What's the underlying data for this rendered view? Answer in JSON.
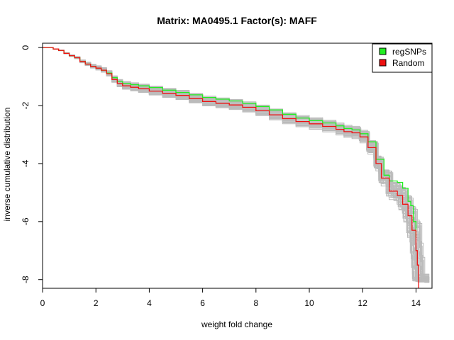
{
  "chart_data": {
    "type": "line",
    "title": "Matrix: MA0495.1 Factor(s): MAFF",
    "xlabel": "weight fold change",
    "ylabel": "inverse cumulative distribution",
    "xlim": [
      0,
      14.6
    ],
    "ylim": [
      -8.3,
      0.15
    ],
    "x_ticks": [
      0,
      2,
      4,
      6,
      8,
      10,
      12,
      14
    ],
    "y_ticks": [
      0,
      -2,
      -4,
      -6,
      -8
    ],
    "legend": {
      "position": "top-right",
      "box": true
    },
    "grid": false,
    "colors": {
      "regSNPs": "#22ee22",
      "Random": "#ee1111",
      "background_random": "#bbbbbb"
    },
    "series": [
      {
        "name": "regSNPs",
        "color": "#22ee22",
        "points": [
          [
            0,
            0
          ],
          [
            0.2,
            0
          ],
          [
            0.4,
            -0.05
          ],
          [
            0.6,
            -0.1
          ],
          [
            0.8,
            -0.2
          ],
          [
            1.0,
            -0.28
          ],
          [
            1.2,
            -0.35
          ],
          [
            1.4,
            -0.48
          ],
          [
            1.6,
            -0.57
          ],
          [
            1.8,
            -0.65
          ],
          [
            2.0,
            -0.71
          ],
          [
            2.2,
            -0.78
          ],
          [
            2.4,
            -0.88
          ],
          [
            2.6,
            -1.04
          ],
          [
            2.8,
            -1.17
          ],
          [
            3.0,
            -1.24
          ],
          [
            3.3,
            -1.28
          ],
          [
            3.6,
            -1.32
          ],
          [
            4.0,
            -1.38
          ],
          [
            4.5,
            -1.47
          ],
          [
            5.0,
            -1.55
          ],
          [
            5.5,
            -1.63
          ],
          [
            6.0,
            -1.72
          ],
          [
            6.5,
            -1.78
          ],
          [
            7.0,
            -1.84
          ],
          [
            7.5,
            -1.92
          ],
          [
            8.0,
            -2.03
          ],
          [
            8.5,
            -2.15
          ],
          [
            9.0,
            -2.3
          ],
          [
            9.5,
            -2.43
          ],
          [
            10.0,
            -2.52
          ],
          [
            10.5,
            -2.6
          ],
          [
            11.0,
            -2.7
          ],
          [
            11.3,
            -2.79
          ],
          [
            11.6,
            -2.84
          ],
          [
            11.9,
            -2.97
          ],
          [
            12.2,
            -3.25
          ],
          [
            12.5,
            -3.85
          ],
          [
            12.8,
            -4.4
          ],
          [
            13.0,
            -4.6
          ],
          [
            13.3,
            -4.65
          ],
          [
            13.5,
            -4.85
          ],
          [
            13.7,
            -5.3
          ],
          [
            13.8,
            -5.45
          ],
          [
            13.9,
            -6.0
          ],
          [
            14.0,
            -6.55
          ]
        ]
      },
      {
        "name": "Random",
        "color": "#ee1111",
        "points": [
          [
            0,
            0
          ],
          [
            0.2,
            0
          ],
          [
            0.4,
            -0.05
          ],
          [
            0.6,
            -0.1
          ],
          [
            0.8,
            -0.2
          ],
          [
            1.0,
            -0.28
          ],
          [
            1.2,
            -0.35
          ],
          [
            1.4,
            -0.48
          ],
          [
            1.6,
            -0.57
          ],
          [
            1.8,
            -0.65
          ],
          [
            2.0,
            -0.71
          ],
          [
            2.2,
            -0.78
          ],
          [
            2.4,
            -0.9
          ],
          [
            2.6,
            -1.1
          ],
          [
            2.8,
            -1.24
          ],
          [
            3.0,
            -1.32
          ],
          [
            3.3,
            -1.37
          ],
          [
            3.6,
            -1.42
          ],
          [
            4.0,
            -1.5
          ],
          [
            4.5,
            -1.58
          ],
          [
            5.0,
            -1.65
          ],
          [
            5.5,
            -1.76
          ],
          [
            6.0,
            -1.86
          ],
          [
            6.5,
            -1.92
          ],
          [
            7.0,
            -1.98
          ],
          [
            7.5,
            -2.06
          ],
          [
            8.0,
            -2.18
          ],
          [
            8.5,
            -2.32
          ],
          [
            9.0,
            -2.45
          ],
          [
            9.5,
            -2.55
          ],
          [
            10.0,
            -2.63
          ],
          [
            10.5,
            -2.72
          ],
          [
            11.0,
            -2.82
          ],
          [
            11.3,
            -2.9
          ],
          [
            11.6,
            -2.94
          ],
          [
            11.9,
            -3.08
          ],
          [
            12.2,
            -3.45
          ],
          [
            12.5,
            -4.0
          ],
          [
            12.7,
            -4.5
          ],
          [
            13.0,
            -4.95
          ],
          [
            13.3,
            -5.1
          ],
          [
            13.5,
            -5.4
          ],
          [
            13.7,
            -5.8
          ],
          [
            13.85,
            -6.3
          ],
          [
            14.0,
            -7.0
          ],
          [
            14.05,
            -7.5
          ],
          [
            14.1,
            -8.3
          ]
        ]
      }
    ]
  }
}
